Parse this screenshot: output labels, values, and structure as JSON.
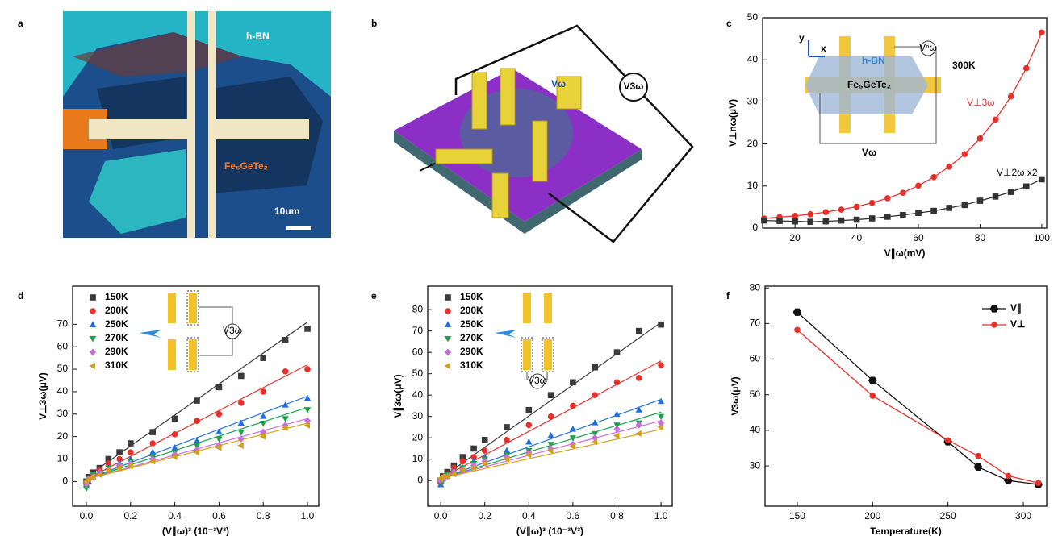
{
  "figure": {
    "panel_labels": [
      "a",
      "b",
      "c",
      "d",
      "e",
      "f"
    ],
    "panel_a": {
      "hbn": "h-BN",
      "material": "Fe₅GeTe₂",
      "scale_bar": "10um"
    },
    "panel_b": {
      "drive": "Vω",
      "detect": "V3ω"
    }
  },
  "chart_data": [
    {
      "type": "scatter",
      "lines": true,
      "x_label": "V∥ω(mV)",
      "y_label": "V⊥nω(μV)",
      "x": [
        10,
        15,
        20,
        25,
        30,
        35,
        40,
        45,
        50,
        55,
        60,
        65,
        70,
        75,
        80,
        85,
        90,
        95,
        100
      ],
      "series": [
        {
          "name": "V⊥3ω",
          "color": "#e8302a",
          "marker": "circle",
          "values": [
            2.3,
            2.6,
            2.9,
            3.3,
            3.8,
            4.4,
            5.1,
            6.0,
            7.1,
            8.4,
            10.1,
            12.1,
            14.6,
            17.6,
            21.3,
            25.8,
            31.3,
            38.0,
            46.5
          ]
        },
        {
          "name": "V⊥2ω x2",
          "color": "#333333",
          "marker": "square",
          "values": [
            1.8,
            1.7,
            1.6,
            1.5,
            1.6,
            1.8,
            2.0,
            2.3,
            2.7,
            3.1,
            3.6,
            4.1,
            4.8,
            5.5,
            6.5,
            7.5,
            8.6,
            9.9,
            11.6
          ]
        }
      ],
      "xlim": [
        9.5,
        101.6
      ],
      "ylim": [
        0,
        50
      ],
      "xticks": [
        20,
        40,
        60,
        80,
        100
      ],
      "yticks": [
        0,
        10,
        20,
        30,
        40,
        50
      ],
      "annotation": "300K",
      "inset": {
        "y_axis": "y",
        "x_axis": "x",
        "hbn": "h-BN",
        "material": "Fe₅GeTe₂",
        "detect": "Vⁿω",
        "drive": "Vω"
      }
    },
    {
      "type": "scatter",
      "legend": "upper left",
      "x_label": "(V∥ω)³ (10⁻³V³)",
      "y_label": "V⊥3ω(μV)",
      "x": [
        0,
        0.01,
        0.03,
        0.06,
        0.1,
        0.15,
        0.2,
        0.3,
        0.4,
        0.5,
        0.6,
        0.7,
        0.8,
        0.9,
        1.0
      ],
      "fit_x": [
        0,
        1.0
      ],
      "series": [
        {
          "name": "150K",
          "color": "#3a3a3a",
          "marker": "square",
          "values": [
            0,
            2,
            4,
            6,
            10,
            13,
            17,
            22,
            28,
            36,
            42,
            47,
            55,
            63,
            68
          ],
          "fit": [
            2,
            71
          ]
        },
        {
          "name": "200K",
          "color": "#e8302a",
          "marker": "circle",
          "values": [
            -1,
            1,
            3,
            5,
            8,
            10,
            13,
            17,
            21,
            27,
            30,
            35,
            40,
            49,
            50
          ],
          "fit": [
            1,
            52
          ]
        },
        {
          "name": "250K",
          "color": "#1f6fe0",
          "marker": "tri-up",
          "values": [
            -2,
            0,
            2,
            4,
            6,
            8,
            10,
            13,
            15,
            18,
            22,
            26,
            29,
            34,
            37
          ],
          "fit": [
            1,
            38
          ]
        },
        {
          "name": "270K",
          "color": "#1aa34a",
          "marker": "tri-down",
          "values": [
            -3,
            1,
            3,
            4,
            6,
            7,
            9,
            11,
            13,
            16,
            19,
            22,
            26,
            28,
            32
          ],
          "fit": [
            1,
            33
          ]
        },
        {
          "name": "290K",
          "color": "#c86fe0",
          "marker": "diamond",
          "values": [
            -1,
            1,
            2,
            4,
            5,
            7,
            8,
            10,
            12,
            14,
            16,
            19,
            22,
            25,
            27
          ],
          "fit": [
            1,
            28
          ]
        },
        {
          "name": "310K",
          "color": "#d4a017",
          "marker": "tri-left",
          "values": [
            0,
            1,
            2,
            3,
            5,
            6,
            7,
            9,
            11,
            13,
            15,
            16,
            20,
            24,
            25
          ],
          "fit": [
            1,
            26
          ]
        }
      ],
      "xlim": [
        -0.062,
        1.051
      ],
      "ylim": [
        -11,
        87
      ],
      "xticks": [
        {
          "value": 0,
          "label": "0.0"
        },
        0.2,
        0.4,
        0.6,
        0.8,
        {
          "value": 1,
          "label": "1.0"
        }
      ],
      "yticks": [
        0,
        10,
        20,
        30,
        40,
        50,
        60,
        70
      ],
      "inset_label": "V3ω"
    },
    {
      "type": "scatter",
      "legend": "upper left",
      "x_label": "(V∥ω)³ (10⁻³V³)",
      "y_label": "V∥3ω(μV)",
      "x": [
        0,
        0.01,
        0.03,
        0.06,
        0.1,
        0.15,
        0.2,
        0.3,
        0.4,
        0.5,
        0.6,
        0.7,
        0.8,
        0.9,
        1.0
      ],
      "fit_x": [
        0,
        1.0
      ],
      "series": [
        {
          "name": "150K",
          "color": "#3a3a3a",
          "marker": "square",
          "values": [
            0,
            2,
            4,
            7,
            11,
            15,
            19,
            25,
            33,
            40,
            46,
            53,
            60,
            70,
            73
          ],
          "fit": [
            1,
            74
          ]
        },
        {
          "name": "200K",
          "color": "#e8302a",
          "marker": "circle",
          "values": [
            -1,
            1,
            3,
            6,
            9,
            11,
            14,
            19,
            26,
            30,
            35,
            40,
            46,
            48,
            54
          ],
          "fit": [
            1,
            56
          ]
        },
        {
          "name": "250K",
          "color": "#1f6fe0",
          "marker": "tri-up",
          "values": [
            -2,
            1,
            2,
            4,
            6,
            9,
            11,
            14,
            18,
            21,
            24,
            27,
            31,
            33,
            37
          ],
          "fit": [
            1,
            38
          ]
        },
        {
          "name": "270K",
          "color": "#1aa34a",
          "marker": "tri-down",
          "values": [
            -1,
            0,
            3,
            4,
            6,
            8,
            10,
            12,
            14,
            17,
            20,
            22,
            26,
            27,
            30
          ],
          "fit": [
            1,
            32
          ]
        },
        {
          "name": "290K",
          "color": "#c86fe0",
          "marker": "diamond",
          "values": [
            0,
            1,
            2,
            4,
            5,
            7,
            9,
            11,
            13,
            15,
            17,
            20,
            24,
            26,
            27
          ],
          "fit": [
            1,
            28
          ]
        },
        {
          "name": "310K",
          "color": "#d4a017",
          "marker": "tri-left",
          "values": [
            1,
            2,
            2,
            3,
            5,
            6,
            8,
            10,
            12,
            14,
            16,
            18,
            21,
            22,
            25
          ],
          "fit": [
            1,
            24
          ]
        }
      ],
      "xlim": [
        -0.059,
        1.051
      ],
      "ylim": [
        -12,
        91
      ],
      "xticks": [
        {
          "value": 0,
          "label": "0.0"
        },
        0.2,
        0.4,
        0.6,
        0.8,
        {
          "value": 1,
          "label": "1.0"
        }
      ],
      "yticks": [
        0,
        10,
        20,
        30,
        40,
        50,
        60,
        70,
        80
      ],
      "inset_label": "V3ω"
    },
    {
      "type": "line",
      "lines": true,
      "legend": "upper right",
      "x_label": "Temperature(K)",
      "y_label": "V3ω(μV)",
      "x": [
        150,
        200,
        250,
        270,
        290,
        310
      ],
      "series": [
        {
          "name": "V∥",
          "color": "#111111",
          "marker": "hexagon",
          "values": [
            73.2,
            54,
            36.8,
            29.7,
            25.9,
            24.8
          ]
        },
        {
          "name": "V⊥",
          "color": "#e8302a",
          "marker": "circle",
          "values": [
            68.2,
            49.7,
            37.2,
            32.8,
            27.2,
            25.2
          ]
        }
      ],
      "xlim": [
        128.6,
        315.5
      ],
      "ylim": [
        18.7,
        80.5
      ],
      "xticks": [
        150,
        200,
        250,
        300
      ],
      "yticks": [
        30,
        40,
        50,
        60,
        70,
        80
      ]
    }
  ]
}
